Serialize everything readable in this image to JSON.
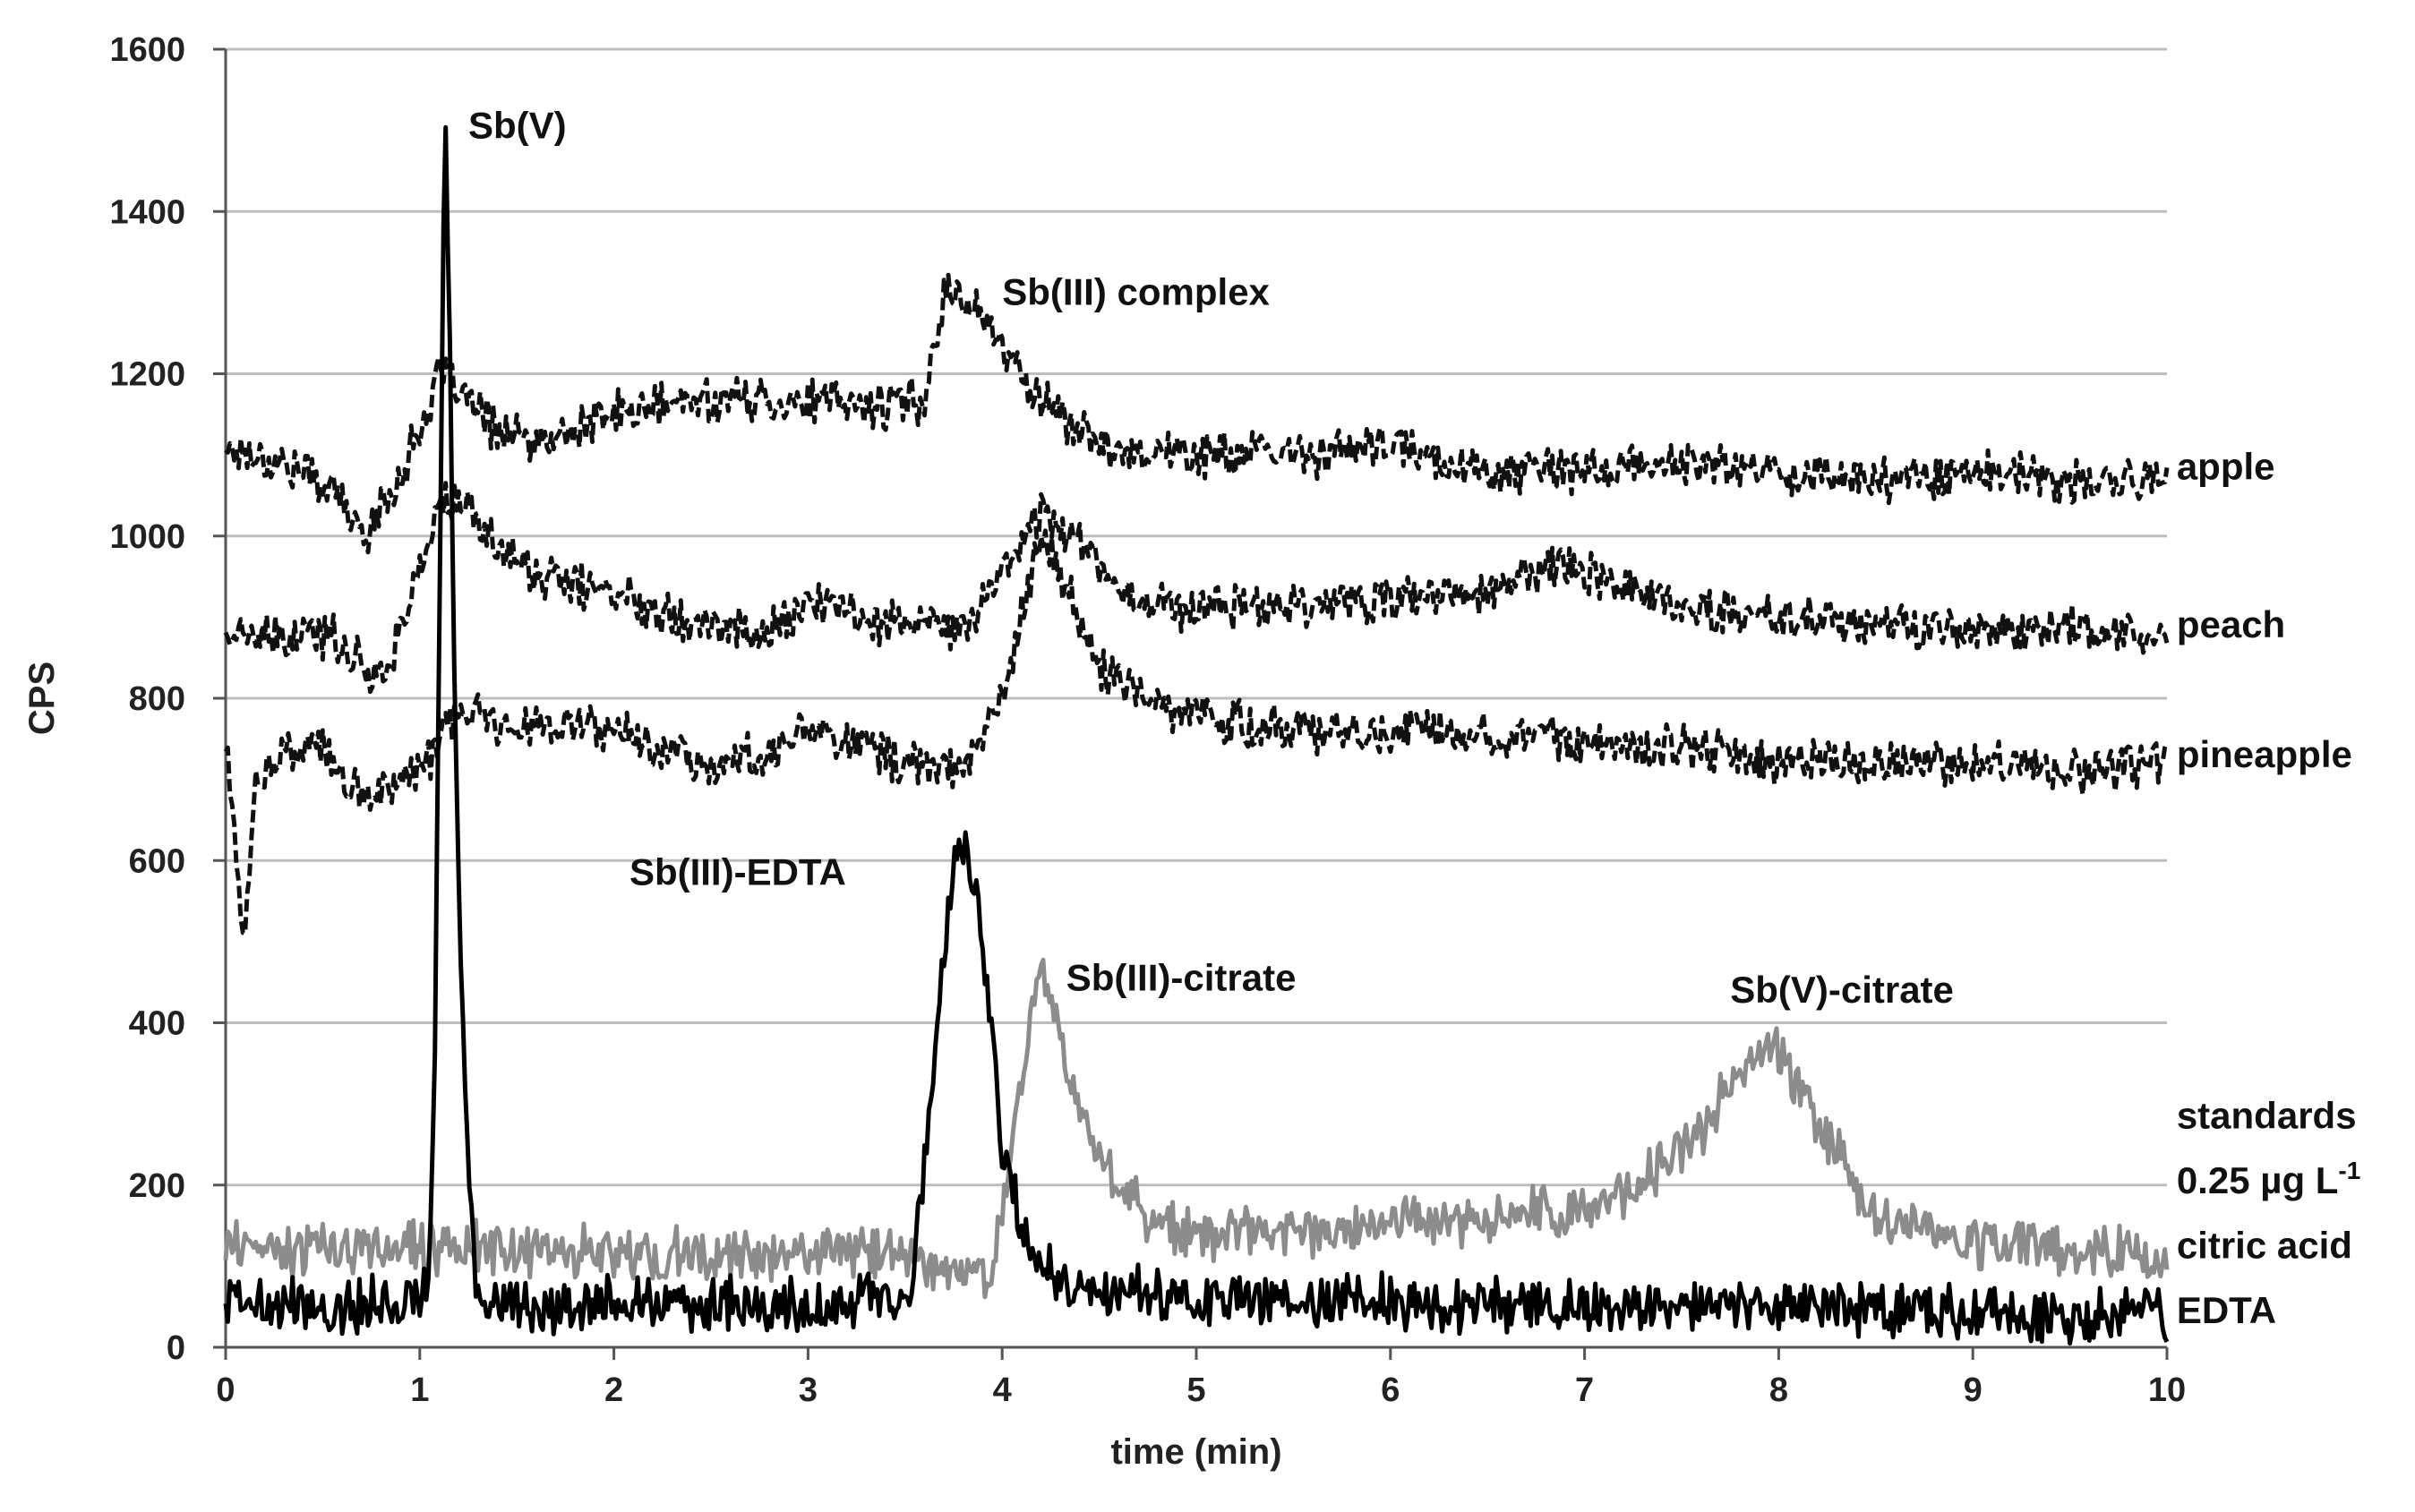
{
  "chart_data": {
    "type": "line",
    "xlabel": "time (min)",
    "ylabel": "CPS",
    "xlim": [
      0,
      10
    ],
    "ylim": [
      0,
      1600
    ],
    "x_ticks": [
      0,
      1,
      2,
      3,
      4,
      5,
      6,
      7,
      8,
      9,
      10
    ],
    "y_ticks": [
      0,
      200,
      400,
      600,
      800,
      1000,
      1200,
      1400,
      1600
    ],
    "grid": true,
    "legend": "none",
    "series": [
      {
        "key": "apple",
        "label": "apple",
        "style": "dashed",
        "color": "#111111",
        "points": [
          [
            0,
            1110
          ],
          [
            0.3,
            1090
          ],
          [
            0.55,
            1060
          ],
          [
            0.7,
            1000
          ],
          [
            0.85,
            1050
          ],
          [
            1.0,
            1130
          ],
          [
            1.1,
            1200
          ],
          [
            1.2,
            1180
          ],
          [
            1.35,
            1140
          ],
          [
            1.6,
            1110
          ],
          [
            2.0,
            1150
          ],
          [
            2.5,
            1170
          ],
          [
            3.0,
            1165
          ],
          [
            3.4,
            1160
          ],
          [
            3.6,
            1170
          ],
          [
            3.7,
            1300
          ],
          [
            3.85,
            1290
          ],
          [
            4.0,
            1230
          ],
          [
            4.2,
            1170
          ],
          [
            4.5,
            1110
          ],
          [
            5.0,
            1100
          ],
          [
            5.5,
            1100
          ],
          [
            6.0,
            1110
          ],
          [
            6.5,
            1080
          ],
          [
            7.0,
            1080
          ],
          [
            7.5,
            1090
          ],
          [
            8.0,
            1080
          ],
          [
            8.5,
            1070
          ],
          [
            9.0,
            1080
          ],
          [
            9.5,
            1065
          ],
          [
            10,
            1070
          ]
        ]
      },
      {
        "key": "peach",
        "label": "peach",
        "style": "dashed",
        "color": "#111111",
        "points": [
          [
            0,
            880
          ],
          [
            0.3,
            870
          ],
          [
            0.55,
            880
          ],
          [
            0.7,
            840
          ],
          [
            0.8,
            830
          ],
          [
            0.9,
            880
          ],
          [
            1.0,
            960
          ],
          [
            1.1,
            1040
          ],
          [
            1.2,
            1040
          ],
          [
            1.4,
            990
          ],
          [
            1.6,
            950
          ],
          [
            2.0,
            930
          ],
          [
            2.5,
            890
          ],
          [
            2.8,
            880
          ],
          [
            3.0,
            920
          ],
          [
            3.3,
            900
          ],
          [
            3.6,
            890
          ],
          [
            3.8,
            880
          ],
          [
            4.0,
            960
          ],
          [
            4.2,
            1030
          ],
          [
            4.4,
            1000
          ],
          [
            4.6,
            930
          ],
          [
            5.0,
            910
          ],
          [
            5.5,
            920
          ],
          [
            6.0,
            920
          ],
          [
            6.5,
            930
          ],
          [
            6.9,
            970
          ],
          [
            7.1,
            950
          ],
          [
            7.5,
            910
          ],
          [
            8.0,
            900
          ],
          [
            8.5,
            890
          ],
          [
            9.0,
            880
          ],
          [
            9.5,
            890
          ],
          [
            10,
            870
          ]
        ]
      },
      {
        "key": "pineapple",
        "label": "pineapple",
        "style": "dashed",
        "color": "#111111",
        "points": [
          [
            0,
            750
          ],
          [
            0.05,
            620
          ],
          [
            0.1,
            490
          ],
          [
            0.15,
            700
          ],
          [
            0.3,
            730
          ],
          [
            0.5,
            740
          ],
          [
            0.65,
            680
          ],
          [
            0.8,
            690
          ],
          [
            1.0,
            710
          ],
          [
            1.2,
            780
          ],
          [
            1.5,
            770
          ],
          [
            2.0,
            760
          ],
          [
            2.5,
            720
          ],
          [
            2.8,
            730
          ],
          [
            3.0,
            770
          ],
          [
            3.3,
            740
          ],
          [
            3.5,
            720
          ],
          [
            3.8,
            710
          ],
          [
            4.0,
            800
          ],
          [
            4.1,
            900
          ],
          [
            4.2,
            1000
          ],
          [
            4.3,
            950
          ],
          [
            4.5,
            840
          ],
          [
            4.8,
            790
          ],
          [
            5.2,
            770
          ],
          [
            5.5,
            760
          ],
          [
            6.0,
            760
          ],
          [
            6.5,
            760
          ],
          [
            7.0,
            750
          ],
          [
            7.5,
            740
          ],
          [
            8.0,
            720
          ],
          [
            8.5,
            720
          ],
          [
            9.0,
            720
          ],
          [
            9.5,
            710
          ],
          [
            10,
            720
          ]
        ]
      },
      {
        "key": "citric",
        "label": "citric acid",
        "style": "solid",
        "color": "#8c8c8c",
        "points": [
          [
            0,
            120
          ],
          [
            0.5,
            120
          ],
          [
            1.0,
            125
          ],
          [
            1.5,
            120
          ],
          [
            2.0,
            115
          ],
          [
            2.5,
            110
          ],
          [
            3.0,
            115
          ],
          [
            3.4,
            120
          ],
          [
            3.6,
            100
          ],
          [
            3.8,
            90
          ],
          [
            3.95,
            100
          ],
          [
            4.05,
            250
          ],
          [
            4.15,
            420
          ],
          [
            4.2,
            470
          ],
          [
            4.3,
            380
          ],
          [
            4.45,
            250
          ],
          [
            4.6,
            200
          ],
          [
            4.8,
            150
          ],
          [
            5.0,
            140
          ],
          [
            5.5,
            140
          ],
          [
            6.0,
            150
          ],
          [
            6.5,
            160
          ],
          [
            7.0,
            170
          ],
          [
            7.3,
            200
          ],
          [
            7.6,
            270
          ],
          [
            7.8,
            340
          ],
          [
            7.9,
            380
          ],
          [
            8.05,
            340
          ],
          [
            8.25,
            260
          ],
          [
            8.5,
            160
          ],
          [
            9.0,
            130
          ],
          [
            9.5,
            120
          ],
          [
            10,
            110
          ]
        ]
      },
      {
        "key": "edta",
        "label": "EDTA",
        "style": "solid",
        "color": "#000000",
        "points": [
          [
            0,
            60
          ],
          [
            0.5,
            50
          ],
          [
            1.0,
            60
          ],
          [
            1.05,
            80
          ],
          [
            1.08,
            400
          ],
          [
            1.11,
            1100
          ],
          [
            1.13,
            1540
          ],
          [
            1.15,
            1300
          ],
          [
            1.18,
            800
          ],
          [
            1.22,
            400
          ],
          [
            1.28,
            100
          ],
          [
            1.35,
            50
          ],
          [
            2.0,
            55
          ],
          [
            2.5,
            50
          ],
          [
            3.0,
            50
          ],
          [
            3.5,
            55
          ],
          [
            3.55,
            100
          ],
          [
            3.65,
            350
          ],
          [
            3.75,
            600
          ],
          [
            3.82,
            620
          ],
          [
            3.9,
            500
          ],
          [
            4.0,
            250
          ],
          [
            4.1,
            150
          ],
          [
            4.2,
            100
          ],
          [
            4.4,
            70
          ],
          [
            5.0,
            60
          ],
          [
            6.0,
            55
          ],
          [
            7.0,
            50
          ],
          [
            8.0,
            50
          ],
          [
            9.0,
            45
          ],
          [
            10,
            40
          ]
        ]
      }
    ],
    "annotations": [
      {
        "text": "Sb(V)",
        "x": 1.25,
        "y": 1490
      },
      {
        "text": "Sb(III) complex",
        "x": 4.0,
        "y": 1285
      },
      {
        "text": "Sb(III)-EDTA",
        "x": 2.08,
        "y": 570
      },
      {
        "text": "Sb(III)-citrate",
        "x": 4.33,
        "y": 440
      },
      {
        "text": "Sb(V)-citrate",
        "x": 7.75,
        "y": 425
      },
      {
        "text": "standards",
        "x": 10.05,
        "y": 270
      },
      {
        "text": "0.25 µg L",
        "sup": "-1",
        "x": 10.05,
        "y": 190
      },
      {
        "text": "citric acid",
        "x": 10.05,
        "y": 110
      },
      {
        "text": "EDTA",
        "x": 10.05,
        "y": 30
      },
      {
        "text": "apple",
        "x": 10.05,
        "y": 1070
      },
      {
        "text": "peach",
        "x": 10.05,
        "y": 875
      },
      {
        "text": "pineapple",
        "x": 10.05,
        "y": 715
      }
    ]
  }
}
